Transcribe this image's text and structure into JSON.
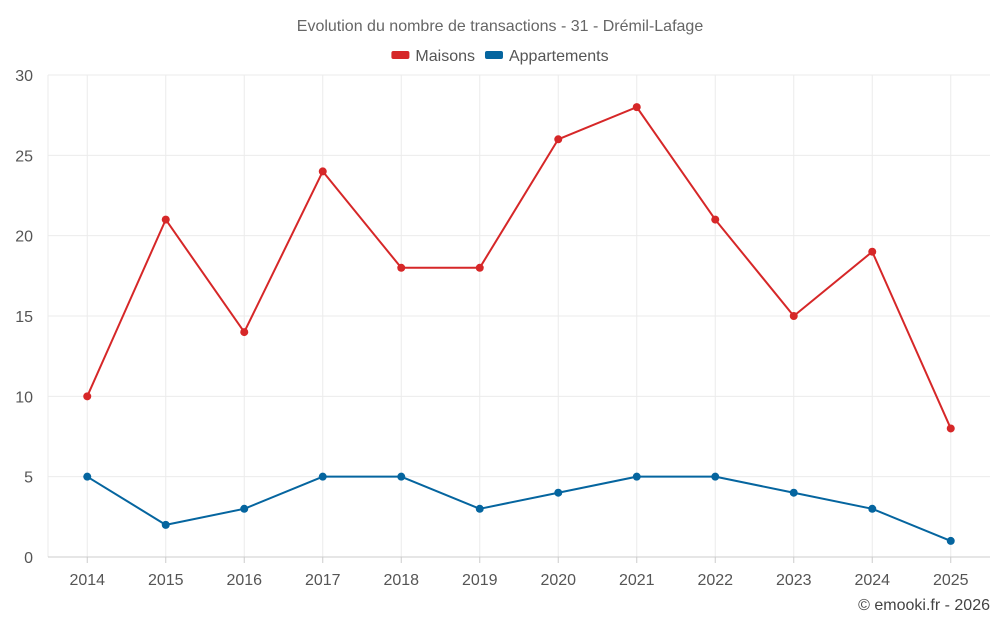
{
  "chart_data": {
    "type": "line",
    "title": "Evolution du nombre de transactions - 31 - Drémil-Lafage",
    "categories": [
      "2014",
      "2015",
      "2016",
      "2017",
      "2018",
      "2019",
      "2020",
      "2021",
      "2022",
      "2023",
      "2024",
      "2025"
    ],
    "series": [
      {
        "name": "Maisons",
        "color": "#d62728",
        "values": [
          10,
          21,
          14,
          24,
          18,
          18,
          26,
          28,
          21,
          15,
          19,
          8
        ]
      },
      {
        "name": "Appartements",
        "color": "#05659f",
        "values": [
          5,
          2,
          3,
          5,
          5,
          3,
          4,
          5,
          5,
          4,
          3,
          1
        ]
      }
    ],
    "yticks": [
      "0",
      "5",
      "10",
      "15",
      "20",
      "25",
      "30"
    ],
    "ylim": [
      0,
      30
    ],
    "xlabel": "",
    "ylabel": "",
    "grid": true,
    "legend": "top-center"
  },
  "credit": "© emooki.fr - 2026"
}
